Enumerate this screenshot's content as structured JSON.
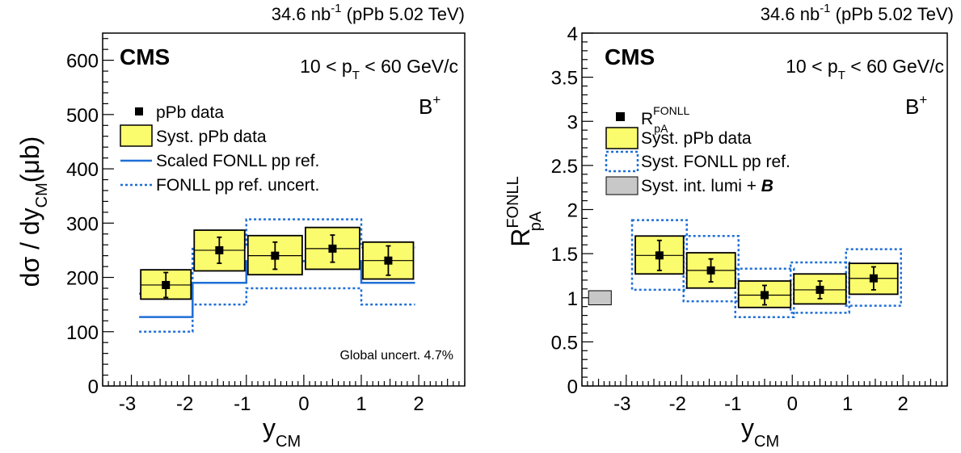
{
  "panels": [
    {
      "lumi": "34.6 nb",
      "lumi_sup": "-1",
      "lumi_tail": " (pPb 5.02 TeV)",
      "cms": "CMS",
      "kin": {
        "a": "10 < p",
        "sub": "T",
        "b": " < 60 GeV/c"
      },
      "meson": "B",
      "meson_sup": "+",
      "ylabel": {
        "a": "dσ / dy",
        "sub": "CM",
        "b": "(μb)"
      },
      "xlabel": {
        "a": "y",
        "sub": "CM"
      },
      "note": "Global uncert. 4.7%",
      "legend": {
        "data": "pPb data",
        "syst": "Syst. pPb data",
        "fonll": "Scaled FONLL pp ref.",
        "fonll_unc": "FONLL pp ref. uncert."
      }
    },
    {
      "lumi": "34.6 nb",
      "lumi_sup": "-1",
      "lumi_tail": " (pPb 5.02 TeV)",
      "cms": "CMS",
      "kin": {
        "a": "10 < p",
        "sub": "T",
        "b": " < 60 GeV/c"
      },
      "meson": "B",
      "meson_sup": "+",
      "ylabel": {
        "a": "R",
        "sup": "FONLL",
        "sub": "pA"
      },
      "xlabel": {
        "a": "y",
        "sub": "CM"
      },
      "legend": {
        "data": "R",
        "data_sup": "FONLL",
        "data_sub": "pA",
        "syst": "Syst. pPb data",
        "fonll_syst": "Syst. FONLL pp ref.",
        "lumi_syst": "Syst. int. lumi + ",
        "lumi_syst_b": "B"
      }
    }
  ],
  "colors": {
    "syst_fill": "#fbfb6e",
    "fonll_line": "#1f6fd6",
    "lumi_box": "#c8c8c8"
  },
  "chart_data": [
    {
      "type": "scatter",
      "x_range": [
        -3.5,
        2.8
      ],
      "y_range": [
        0,
        650
      ],
      "x_ticks": [
        -3,
        -2,
        -1,
        0,
        1,
        2
      ],
      "y_ticks": [
        0,
        100,
        200,
        300,
        400,
        500,
        600
      ],
      "xlabel": "y_CM",
      "ylabel": "dσ / dy_CM(μb)",
      "series": [
        {
          "name": "pPb data",
          "bins": [
            [
              -2.865,
              -1.935
            ],
            [
              -1.935,
              -1
            ],
            [
              -1,
              0
            ],
            [
              0,
              1
            ],
            [
              1,
              1.935
            ]
          ],
          "x": [
            -2.4,
            -1.47,
            -0.5,
            0.5,
            1.47
          ],
          "y": [
            186,
            250,
            240,
            253,
            231
          ],
          "stat_err": [
            23,
            24,
            25,
            25,
            27
          ]
        },
        {
          "name": "Syst. pPb data",
          "low": [
            160,
            212,
            205,
            215,
            197
          ],
          "high": [
            214,
            287,
            277,
            292,
            265
          ]
        },
        {
          "name": "Scaled FONLL pp ref.",
          "edges": [
            -2.865,
            -1.935,
            -1,
            1,
            1.935
          ],
          "y": [
            127,
            190,
            230,
            190
          ]
        },
        {
          "name": "FONLL pp ref. uncert.",
          "low": [
            100,
            150,
            180,
            150
          ],
          "high": [
            170,
            255,
            307,
            255
          ]
        }
      ]
    },
    {
      "type": "scatter",
      "x_range": [
        -3.8,
        2.8
      ],
      "y_range": [
        0,
        4
      ],
      "x_ticks": [
        -3,
        -2,
        -1,
        0,
        1,
        2
      ],
      "y_ticks": [
        0,
        0.5,
        1,
        1.5,
        2,
        2.5,
        3,
        3.5,
        4
      ],
      "xlabel": "y_CM",
      "ylabel": "R_pA^FONLL",
      "series": [
        {
          "name": "R_pA^FONLL",
          "bins": [
            [
              -2.865,
              -1.935
            ],
            [
              -1.935,
              -1
            ],
            [
              -1,
              0
            ],
            [
              0,
              1
            ],
            [
              1,
              1.935
            ]
          ],
          "x": [
            -2.4,
            -1.47,
            -0.5,
            0.5,
            1.47
          ],
          "y": [
            1.48,
            1.31,
            1.03,
            1.09,
            1.22
          ],
          "stat_err": [
            0.17,
            0.13,
            0.11,
            0.1,
            0.13
          ]
        },
        {
          "name": "Syst. pPb data",
          "low": [
            1.27,
            1.11,
            0.89,
            0.93,
            1.04
          ],
          "high": [
            1.7,
            1.51,
            1.19,
            1.27,
            1.39
          ]
        },
        {
          "name": "Syst. FONLL pp ref.",
          "low": [
            1.09,
            0.96,
            0.78,
            0.83,
            0.91
          ],
          "high": [
            1.88,
            1.7,
            1.33,
            1.4,
            1.55
          ]
        },
        {
          "name": "Syst. int. lumi + B",
          "center": 1.0,
          "low": 0.92,
          "high": 1.08
        }
      ]
    }
  ]
}
